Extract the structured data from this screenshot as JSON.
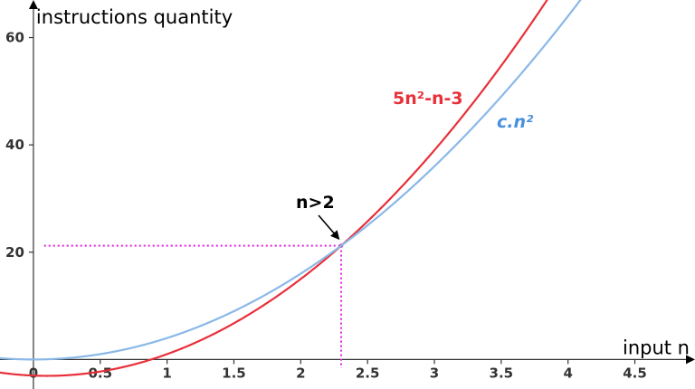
{
  "chart_data": {
    "type": "line",
    "xlabel": "input n",
    "ylabel": "instructions quantity",
    "xlim": [
      -0.25,
      4.95
    ],
    "ylim": [
      -5.5,
      67
    ],
    "x_ticks": [
      {
        "value": 0,
        "label": "0"
      },
      {
        "value": 0.5,
        "label": "0.5"
      },
      {
        "value": 1,
        "label": "1"
      },
      {
        "value": 1.5,
        "label": "1.5"
      },
      {
        "value": 2,
        "label": "2"
      },
      {
        "value": 2.5,
        "label": "2.5"
      },
      {
        "value": 3,
        "label": "3"
      },
      {
        "value": 3.5,
        "label": "3.5"
      },
      {
        "value": 4,
        "label": "4"
      },
      {
        "value": 4.5,
        "label": "4.5"
      }
    ],
    "y_ticks": [
      {
        "value": 20,
        "label": "20"
      },
      {
        "value": 40,
        "label": "40"
      },
      {
        "value": 60,
        "label": "60"
      }
    ],
    "grid": false,
    "series": [
      {
        "name": "5n²-n-3",
        "formula": "5n^2 - n - 3",
        "color": "#e8303a"
      },
      {
        "name": "c.n²",
        "formula": "c*n^2",
        "c": 4,
        "color": "#8ab8e8"
      }
    ],
    "intersection": {
      "x": 2.3028,
      "y": 21.21
    },
    "annotation": "n>2",
    "guide_color": "#e020e0"
  }
}
